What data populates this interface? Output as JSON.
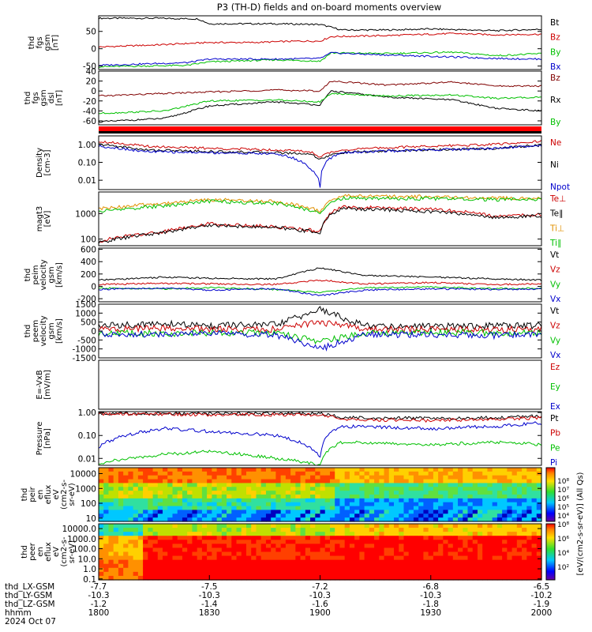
{
  "title": "P3 (TH-D) fields and on-board moments overview",
  "chart_data": [
    {
      "id": "fgs_gsm",
      "type": "line",
      "ylabel": [
        "thd",
        "fgs",
        "gsm",
        "[nT]"
      ],
      "ylim": [
        -60,
        95
      ],
      "yticks": [
        -50,
        0,
        50
      ],
      "series": [
        {
          "name": "Bt",
          "color": "#000000",
          "x": [
            18.0,
            18.25,
            18.45,
            18.5,
            18.8,
            19.0,
            19.1,
            19.3,
            19.5,
            19.8,
            20.0
          ],
          "values": [
            88,
            88,
            86,
            72,
            72,
            70,
            54,
            54,
            57,
            52,
            56
          ]
        },
        {
          "name": "Bz",
          "color": "#cc0000",
          "x": [
            18.0,
            18.3,
            18.5,
            18.7,
            18.9,
            19.0,
            19.05,
            19.3,
            19.6,
            19.8,
            20.0
          ],
          "values": [
            5,
            12,
            18,
            18,
            22,
            22,
            35,
            38,
            44,
            40,
            42
          ]
        },
        {
          "name": "By",
          "color": "#00c000",
          "x": [
            18.0,
            18.4,
            18.5,
            18.8,
            19.0,
            19.05,
            19.3,
            19.6,
            19.8,
            20.0
          ],
          "values": [
            -52,
            -48,
            -38,
            -32,
            -36,
            -12,
            -14,
            -10,
            -20,
            -14
          ]
        },
        {
          "name": "Bx",
          "color": "#0000cc",
          "x": [
            18.0,
            18.4,
            18.5,
            18.8,
            19.0,
            19.05,
            19.3,
            19.6,
            19.8,
            20.0
          ],
          "values": [
            -48,
            -40,
            -30,
            -30,
            -28,
            -12,
            -18,
            -24,
            -28,
            -30
          ]
        }
      ]
    },
    {
      "id": "fgs_gsm_dsl",
      "type": "line",
      "ylabel": [
        "thd",
        "fgs",
        "gsm",
        "dsl",
        "[nT]"
      ],
      "ylim": [
        -68,
        40
      ],
      "yticks": [
        -60,
        -40,
        -20,
        0,
        20,
        40
      ],
      "series": [
        {
          "name": "Bz",
          "color": "#800000",
          "x": [
            18.0,
            18.3,
            18.5,
            18.8,
            19.0,
            19.05,
            19.3,
            19.6,
            19.8,
            20.0
          ],
          "values": [
            -10,
            -5,
            -2,
            2,
            0,
            20,
            12,
            18,
            10,
            10
          ]
        },
        {
          "name": "Rx",
          "color": "#000000",
          "x": [
            18.0,
            18.3,
            18.5,
            18.8,
            19.0,
            19.05,
            19.3,
            19.6,
            19.8,
            20.0
          ],
          "values": [
            -62,
            -55,
            -30,
            -22,
            -28,
            0,
            -12,
            -18,
            -35,
            -40
          ]
        },
        {
          "name": "By",
          "color": "#00c000",
          "x": [
            18.0,
            18.3,
            18.5,
            18.8,
            19.0,
            19.05,
            19.3,
            19.6,
            19.8,
            20.0
          ],
          "values": [
            -45,
            -40,
            -20,
            -18,
            -22,
            -5,
            -10,
            -8,
            -15,
            -12
          ]
        }
      ]
    },
    {
      "id": "density",
      "type": "line",
      "ylabel": [
        "Density",
        "[cm-3]"
      ],
      "ylog": true,
      "ylim": [
        0.003,
        3
      ],
      "yticks": [
        1.0,
        0.1,
        0.01
      ],
      "ytick_labels": [
        "1.00",
        "0.10",
        "0.01"
      ],
      "series": [
        {
          "name": "Ne",
          "color": "#cc0000",
          "x": [
            18.0,
            18.2,
            18.5,
            18.8,
            18.95,
            19.0,
            19.1,
            19.5,
            19.8,
            20.0
          ],
          "values": [
            1.5,
            0.8,
            0.6,
            0.5,
            0.4,
            0.2,
            0.5,
            0.8,
            1.0,
            1.5
          ]
        },
        {
          "name": "Ni",
          "color": "#000000",
          "x": [
            18.0,
            18.2,
            18.5,
            18.8,
            18.95,
            19.0,
            19.1,
            19.5,
            19.8,
            20.0
          ],
          "values": [
            1.0,
            0.5,
            0.4,
            0.35,
            0.3,
            0.15,
            0.35,
            0.5,
            0.6,
            0.9
          ]
        },
        {
          "name": "Npot",
          "color": "#0000cc",
          "x": [
            18.0,
            18.2,
            18.5,
            18.8,
            18.95,
            19.0,
            19.1,
            19.5,
            19.8,
            20.0
          ],
          "values": [
            0.8,
            0.4,
            0.35,
            0.3,
            0.05,
            0.004,
            0.35,
            0.5,
            0.6,
            0.9
          ]
        }
      ]
    },
    {
      "id": "temperature",
      "type": "line",
      "ylabel": [
        "magt3",
        "[eV]"
      ],
      "ylog": true,
      "ylim": [
        55,
        7000
      ],
      "yticks": [
        1000,
        100
      ],
      "ytick_labels": [
        "1000",
        "100"
      ],
      "series": [
        {
          "name": "Te⊥",
          "color": "#cc0000",
          "x": [
            18.0,
            18.3,
            18.5,
            18.8,
            19.0,
            19.1,
            19.5,
            19.8,
            20.0
          ],
          "values": [
            80,
            200,
            400,
            300,
            200,
            1800,
            1500,
            800,
            900
          ]
        },
        {
          "name": "Te∥",
          "color": "#000000",
          "x": [
            18.0,
            18.3,
            18.5,
            18.8,
            19.0,
            19.1,
            19.5,
            19.8,
            20.0
          ],
          "values": [
            70,
            180,
            350,
            280,
            180,
            1600,
            1200,
            700,
            800
          ]
        },
        {
          "name": "Ti⊥",
          "color": "#e09000",
          "x": [
            18.0,
            18.3,
            18.5,
            18.8,
            19.0,
            19.1,
            19.5,
            19.8,
            20.0
          ],
          "values": [
            1500,
            2500,
            3500,
            3000,
            1200,
            5000,
            4500,
            4000,
            4000
          ]
        },
        {
          "name": "Ti∥",
          "color": "#00c000",
          "x": [
            18.0,
            18.3,
            18.5,
            18.8,
            19.0,
            19.1,
            19.5,
            19.8,
            20.0
          ],
          "values": [
            1200,
            2000,
            3000,
            2500,
            1000,
            4000,
            3800,
            3500,
            3500
          ]
        }
      ]
    },
    {
      "id": "peim_velocity",
      "type": "line",
      "ylabel": [
        "thd",
        "peim",
        "velocity",
        "gsm",
        "[km/s]"
      ],
      "ylim": [
        -250,
        620
      ],
      "yticks": [
        600,
        400,
        200,
        0,
        -200
      ],
      "series": [
        {
          "name": "Vt",
          "color": "#000000",
          "x": [
            18.0,
            18.3,
            18.5,
            18.8,
            19.0,
            19.2,
            19.5,
            19.8,
            20.0
          ],
          "values": [
            100,
            150,
            130,
            120,
            300,
            180,
            150,
            120,
            100
          ]
        },
        {
          "name": "Vz",
          "color": "#cc0000",
          "x": [
            18.0,
            18.3,
            18.5,
            18.8,
            19.0,
            19.2,
            19.5,
            19.8,
            20.0
          ],
          "values": [
            30,
            50,
            40,
            30,
            100,
            40,
            60,
            30,
            40
          ]
        },
        {
          "name": "Vy",
          "color": "#00c000",
          "x": [
            18.0,
            18.3,
            18.5,
            18.8,
            19.0,
            19.2,
            19.5,
            19.8,
            20.0
          ],
          "values": [
            -30,
            -40,
            -20,
            -50,
            -100,
            -20,
            -10,
            -40,
            -30
          ]
        },
        {
          "name": "Vx",
          "color": "#0000cc",
          "x": [
            18.0,
            18.3,
            18.5,
            18.8,
            19.0,
            19.2,
            19.5,
            19.8,
            20.0
          ],
          "values": [
            -50,
            -30,
            -60,
            -40,
            -150,
            -60,
            -40,
            -50,
            -40
          ]
        }
      ]
    },
    {
      "id": "peem_velocity",
      "type": "line",
      "ylabel": [
        "thd",
        "peem",
        "velocity",
        "gsm",
        "[km/s]"
      ],
      "ylim": [
        -1500,
        1500
      ],
      "yticks": [
        1500,
        1000,
        500,
        0,
        -500,
        -1000,
        -1500
      ],
      "series": [
        {
          "name": "Vt",
          "color": "#000000",
          "x": [
            18.0,
            18.3,
            18.5,
            18.8,
            19.0,
            19.2,
            19.5,
            19.8,
            20.0
          ],
          "values": [
            300,
            400,
            300,
            350,
            1200,
            300,
            250,
            300,
            300
          ]
        },
        {
          "name": "Vz",
          "color": "#cc0000",
          "x": [
            18.0,
            18.3,
            18.5,
            18.8,
            19.0,
            19.2,
            19.5,
            19.8,
            20.0
          ],
          "values": [
            100,
            150,
            100,
            100,
            500,
            100,
            80,
            100,
            100
          ]
        },
        {
          "name": "Vy",
          "color": "#00c000",
          "x": [
            18.0,
            18.3,
            18.5,
            18.8,
            19.0,
            19.2,
            19.5,
            19.8,
            20.0
          ],
          "values": [
            -100,
            -150,
            -100,
            -120,
            -600,
            -100,
            -80,
            -100,
            -100
          ]
        },
        {
          "name": "Vx",
          "color": "#0000cc",
          "x": [
            18.0,
            18.3,
            18.5,
            18.8,
            19.0,
            19.2,
            19.5,
            19.8,
            20.0
          ],
          "values": [
            -150,
            -200,
            -150,
            -200,
            -1000,
            -200,
            -200,
            -250,
            -150
          ]
        }
      ]
    },
    {
      "id": "efield",
      "type": "line",
      "ylabel": [
        "E=-VxB",
        "[mV/m]"
      ],
      "ylim": [
        0,
        1
      ],
      "yticks": [],
      "series": [
        {
          "name": "Ez",
          "color": "#cc0000",
          "x": [],
          "values": []
        },
        {
          "name": "Ey",
          "color": "#00c000",
          "x": [],
          "values": []
        },
        {
          "name": "Ex",
          "color": "#0000cc",
          "x": [],
          "values": []
        }
      ]
    },
    {
      "id": "pressure",
      "type": "line",
      "ylabel": [
        "Pressure",
        "[nPa]"
      ],
      "ylog": true,
      "ylim": [
        0.005,
        1.1
      ],
      "yticks": [
        1.0,
        0.1,
        0.01
      ],
      "ytick_labels": [
        "1.00",
        "0.10",
        "0.01"
      ],
      "series": [
        {
          "name": "Pt",
          "color": "#000000",
          "x": [
            18.0,
            18.3,
            18.5,
            18.8,
            19.0,
            19.1,
            19.5,
            19.8,
            20.0
          ],
          "values": [
            0.9,
            0.9,
            0.9,
            0.9,
            0.9,
            0.6,
            0.55,
            0.6,
            0.7
          ]
        },
        {
          "name": "Pb",
          "color": "#cc0000",
          "x": [
            18.0,
            18.3,
            18.5,
            18.8,
            19.0,
            19.1,
            19.5,
            19.8,
            20.0
          ],
          "values": [
            0.85,
            0.85,
            0.8,
            0.8,
            0.8,
            0.5,
            0.45,
            0.5,
            0.6
          ]
        },
        {
          "name": "Pe",
          "color": "#00c000",
          "x": [
            18.0,
            18.3,
            18.5,
            18.8,
            19.0,
            19.1,
            19.5,
            19.8,
            20.0
          ],
          "values": [
            0.006,
            0.015,
            0.02,
            0.01,
            0.005,
            0.05,
            0.04,
            0.05,
            0.04
          ]
        },
        {
          "name": "Pi",
          "color": "#0000cc",
          "x": [
            18.0,
            18.3,
            18.5,
            18.8,
            19.0,
            19.1,
            19.5,
            19.8,
            20.0
          ],
          "values": [
            0.03,
            0.2,
            0.15,
            0.1,
            0.01,
            0.25,
            0.2,
            0.25,
            0.35
          ]
        }
      ]
    },
    {
      "id": "peir_eflux",
      "type": "heatmap",
      "ylabel": [
        "thd",
        "peir",
        "en",
        "eflux",
        "eV",
        "(cm2-s-",
        "sr-eV)"
      ],
      "ylog": true,
      "ylim": [
        6,
        25000
      ],
      "yticks": [
        10000,
        1000,
        100,
        10
      ],
      "ytick_labels": [
        "10000",
        "1000",
        "100",
        "10"
      ]
    },
    {
      "id": "peer_eflux",
      "type": "heatmap",
      "ylabel": [
        "thd",
        "peer",
        "en",
        "eflux",
        "eV",
        "(cm2-s-",
        "sr-eV)"
      ],
      "ylog": true,
      "ylim": [
        0.08,
        30000
      ],
      "yticks": [
        10000,
        1000,
        100,
        10,
        1,
        0.1
      ],
      "ytick_labels": [
        "10000.0",
        "1000.0",
        "100.0",
        "10.0",
        "1.0",
        "0.1"
      ]
    }
  ],
  "colorbar": {
    "label": "[eV/(cm2-s-sr-eV)] (All Qs)",
    "ticks_upper": [
      "10⁸",
      "10⁷",
      "10⁶",
      "10⁵",
      "10⁴"
    ],
    "ticks_lower": [
      "10⁸",
      "10⁶",
      "10⁴",
      "10²"
    ]
  },
  "x_axis": {
    "xlim": [
      18.0,
      20.0
    ],
    "tick_x": [
      18.0,
      18.5,
      19.0,
      19.5,
      20.0
    ],
    "row_labels": [
      "thd_LX-GSM",
      "thd_LY-GSM",
      "thd_LZ-GSM",
      "hhmm",
      "2024 Oct 07"
    ],
    "rows": [
      [
        "-7.7",
        "-7.5",
        "-7.2",
        "-6.8",
        "-6.5"
      ],
      [
        "-10.3",
        "-10.3",
        "-10.3",
        "-10.3",
        "-10.2"
      ],
      [
        "-1.2",
        "-1.4",
        "-1.6",
        "-1.8",
        "-1.9"
      ],
      [
        "1800",
        "1830",
        "1900",
        "1930",
        "2000"
      ]
    ]
  }
}
